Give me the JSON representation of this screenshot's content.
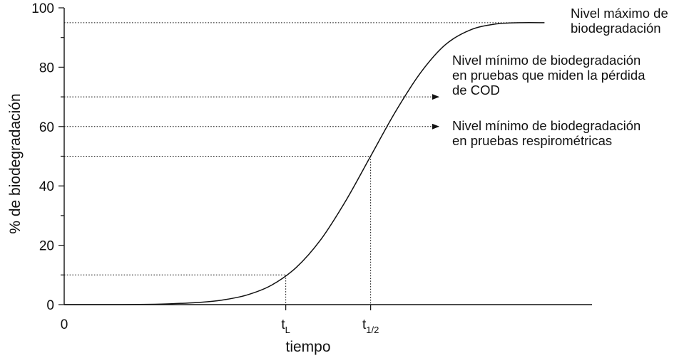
{
  "chart_data": {
    "type": "line",
    "xlabel": "tiempo",
    "ylabel": "% de biodegradación",
    "ylim": [
      0,
      100
    ],
    "y_ticks": [
      "0",
      "20",
      "40",
      "60",
      "80",
      "100"
    ],
    "x_ticks": [
      {
        "base": "0",
        "sub": ""
      },
      {
        "base": "t",
        "sub": "L"
      },
      {
        "base": "t",
        "sub": "1/2"
      }
    ],
    "grid": false,
    "series": [
      {
        "points": [
          [
            0,
            0
          ],
          [
            0.5,
            0.1
          ],
          [
            1,
            0.3
          ],
          [
            1.5,
            0.7
          ],
          [
            2,
            1.5
          ],
          [
            2.5,
            3.2
          ],
          [
            3,
            6.5
          ],
          [
            3.5,
            12.5
          ],
          [
            4,
            22
          ],
          [
            4.5,
            35
          ],
          [
            5,
            50
          ],
          [
            5.5,
            65
          ],
          [
            6,
            78
          ],
          [
            6.5,
            87.5
          ],
          [
            7,
            92.5
          ],
          [
            7.5,
            94.5
          ],
          [
            8,
            95
          ],
          [
            8.5,
            95
          ]
        ]
      }
    ],
    "reference_lines": [
      {
        "y": 95,
        "label": "Nivel máximo de\nbiodegradación",
        "arrow": false
      },
      {
        "y": 70,
        "label": "Nivel mínimo de biodegradación\nen pruebas que miden la pérdida\nde COD",
        "arrow": true
      },
      {
        "y": 60,
        "label": "Nivel mínimo de biodegradación\nen pruebas respirométricas",
        "arrow": true
      },
      {
        "y": 50,
        "label": "",
        "arrow": false,
        "drop_to_x": "t1/2"
      },
      {
        "y": 10,
        "label": "",
        "arrow": false,
        "drop_to_x": "tL"
      }
    ]
  }
}
